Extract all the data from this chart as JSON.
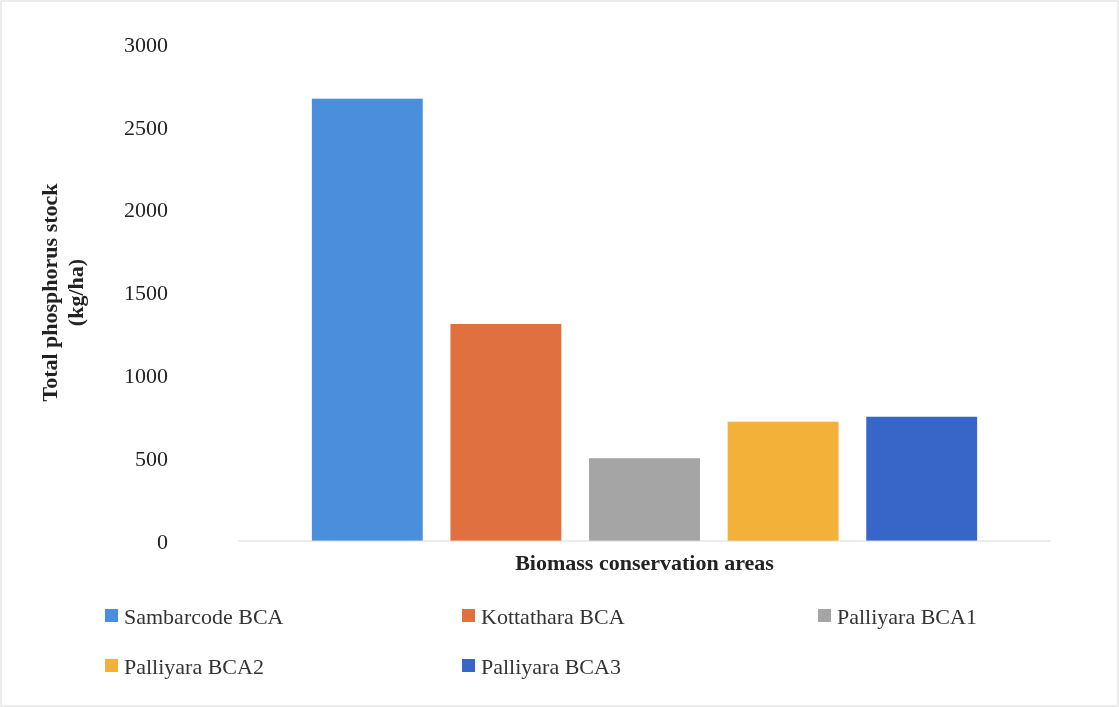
{
  "chart_data": {
    "type": "bar",
    "xlabel": "Biomass conservation areas",
    "ylabel": "Total phosphorus stock\n(kg/ha)",
    "categories": [
      null,
      null,
      null,
      null,
      null
    ],
    "series": [
      {
        "name": "Sambarcode BCA",
        "color": "#4a8fdc",
        "values": [
          2670,
          null,
          null,
          null,
          null
        ]
      },
      {
        "name": "Kottathara BCA",
        "color": "#e0703f",
        "values": [
          null,
          1310,
          null,
          null,
          null
        ]
      },
      {
        "name": "Palliyara BCA1",
        "color": "#a5a5a5",
        "values": [
          null,
          null,
          500,
          null,
          null
        ]
      },
      {
        "name": "Palliyara BCA2",
        "color": "#f3b13a",
        "values": [
          null,
          null,
          null,
          720,
          null
        ]
      },
      {
        "name": "Palliyara BCA3",
        "color": "#3566c8",
        "values": [
          null,
          null,
          null,
          null,
          750
        ]
      }
    ],
    "ylim": [
      0,
      3000
    ],
    "yticks": [
      0,
      500,
      1000,
      1500,
      2000,
      2500,
      3000
    ],
    "grid": false,
    "legend": "bottom"
  }
}
